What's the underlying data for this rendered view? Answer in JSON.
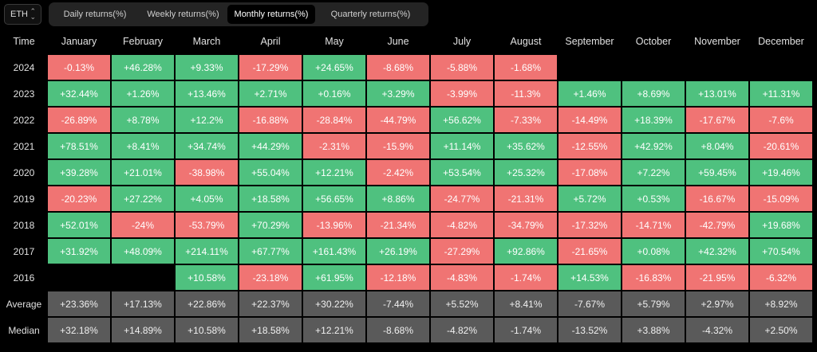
{
  "asset_select": {
    "value": "ETH",
    "icon": "chevron-updown-icon"
  },
  "tabs": [
    {
      "label": "Daily returns(%)",
      "active": false
    },
    {
      "label": "Weekly returns(%)",
      "active": false
    },
    {
      "label": "Monthly returns(%)",
      "active": true
    },
    {
      "label": "Quarterly returns(%)",
      "active": false
    }
  ],
  "table": {
    "corner_label": "Time",
    "columns": [
      "January",
      "February",
      "March",
      "April",
      "May",
      "June",
      "July",
      "August",
      "September",
      "October",
      "November",
      "December"
    ],
    "rows": [
      {
        "label": "2024",
        "values": [
          "-0.13%",
          "+46.28%",
          "+9.33%",
          "-17.29%",
          "+24.65%",
          "-8.68%",
          "-5.88%",
          "-1.68%",
          "",
          "",
          "",
          ""
        ]
      },
      {
        "label": "2023",
        "values": [
          "+32.44%",
          "+1.26%",
          "+13.46%",
          "+2.71%",
          "+0.16%",
          "+3.29%",
          "-3.99%",
          "-11.3%",
          "+1.46%",
          "+8.69%",
          "+13.01%",
          "+11.31%"
        ]
      },
      {
        "label": "2022",
        "values": [
          "-26.89%",
          "+8.78%",
          "+12.2%",
          "-16.88%",
          "-28.84%",
          "-44.79%",
          "+56.62%",
          "-7.33%",
          "-14.49%",
          "+18.39%",
          "-17.67%",
          "-7.6%"
        ]
      },
      {
        "label": "2021",
        "values": [
          "+78.51%",
          "+8.41%",
          "+34.74%",
          "+44.29%",
          "-2.31%",
          "-15.9%",
          "+11.14%",
          "+35.62%",
          "-12.55%",
          "+42.92%",
          "+8.04%",
          "-20.61%"
        ]
      },
      {
        "label": "2020",
        "values": [
          "+39.28%",
          "+21.01%",
          "-38.98%",
          "+55.04%",
          "+12.21%",
          "-2.42%",
          "+53.54%",
          "+25.32%",
          "-17.08%",
          "+7.22%",
          "+59.45%",
          "+19.46%"
        ]
      },
      {
        "label": "2019",
        "values": [
          "-20.23%",
          "+27.22%",
          "+4.05%",
          "+18.58%",
          "+56.65%",
          "+8.86%",
          "-24.77%",
          "-21.31%",
          "+5.72%",
          "+0.53%",
          "-16.67%",
          "-15.09%"
        ]
      },
      {
        "label": "2018",
        "values": [
          "+52.01%",
          "-24%",
          "-53.79%",
          "+70.29%",
          "-13.96%",
          "-21.34%",
          "-4.82%",
          "-34.79%",
          "-17.32%",
          "-14.71%",
          "-42.79%",
          "+19.68%"
        ]
      },
      {
        "label": "2017",
        "values": [
          "+31.92%",
          "+48.09%",
          "+214.11%",
          "+67.77%",
          "+161.43%",
          "+26.19%",
          "-27.29%",
          "+92.86%",
          "-21.65%",
          "+0.08%",
          "+42.32%",
          "+70.54%"
        ]
      },
      {
        "label": "2016",
        "values": [
          "",
          "",
          "+10.58%",
          "-23.18%",
          "+61.95%",
          "-12.18%",
          "-4.83%",
          "-1.74%",
          "+14.53%",
          "-16.83%",
          "-21.95%",
          "-6.32%"
        ]
      }
    ],
    "summary": [
      {
        "label": "Average",
        "values": [
          "+23.36%",
          "+17.13%",
          "+22.86%",
          "+22.37%",
          "+30.22%",
          "-7.44%",
          "+5.52%",
          "+8.41%",
          "-7.67%",
          "+5.79%",
          "+2.97%",
          "+8.92%"
        ]
      },
      {
        "label": "Median",
        "values": [
          "+32.18%",
          "+14.89%",
          "+10.58%",
          "+18.58%",
          "+12.21%",
          "-8.68%",
          "-4.82%",
          "-1.74%",
          "-13.52%",
          "+3.88%",
          "-4.32%",
          "+2.50%"
        ]
      }
    ]
  },
  "colors": {
    "positive": "#4fc17f",
    "negative": "#f07473",
    "summary": "#5a5a5a",
    "background": "#000000"
  }
}
